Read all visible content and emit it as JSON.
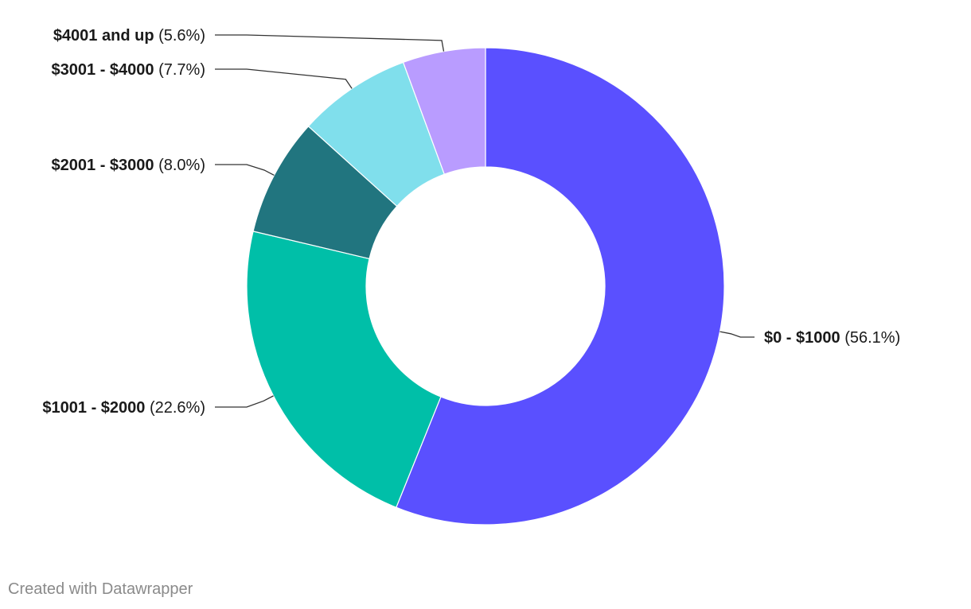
{
  "chart_data": {
    "type": "pie",
    "variant": "donut",
    "categories": [
      "$0 - $1000",
      "$1001 - $2000",
      "$2001 - $3000",
      "$3001 - $4000",
      "$4001 and up"
    ],
    "values": [
      56.1,
      22.6,
      8.0,
      7.7,
      5.6
    ],
    "value_labels": [
      "(56.1%)",
      "(22.6%)",
      "(8.0%)",
      "(7.7%)",
      "(5.6%)"
    ],
    "unit": "%",
    "colors": [
      "#5a50ff",
      "#00bfa8",
      "#21757f",
      "#80dfec",
      "#b99cff"
    ],
    "start": "12 o'clock",
    "direction": "clockwise",
    "legend": "none (labels beside slices with leader lines)"
  },
  "footer": {
    "credit": "Created with Datawrapper"
  }
}
